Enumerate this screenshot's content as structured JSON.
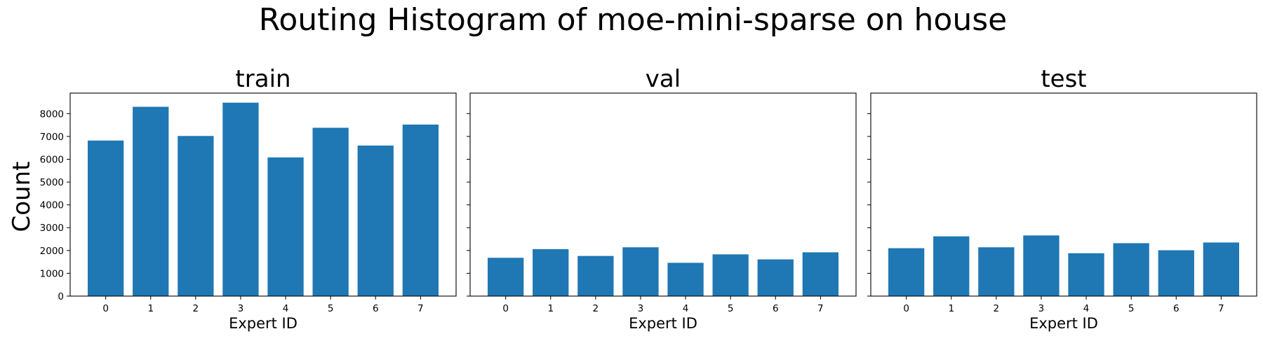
{
  "chart_data": {
    "title": "Routing Histogram of moe-mini-sparse on house",
    "ylabel": "Count",
    "type": "bar",
    "color": "#1f77b4",
    "sharey": true,
    "ylim": [
      0,
      8900
    ],
    "yticks": [
      0,
      1000,
      2000,
      3000,
      4000,
      5000,
      6000,
      7000,
      8000
    ],
    "categories": [
      "0",
      "1",
      "2",
      "3",
      "4",
      "5",
      "6",
      "7"
    ],
    "panels": [
      {
        "title": "train",
        "xlabel": "Expert ID",
        "values": [
          6820,
          8300,
          7020,
          8480,
          6080,
          7380,
          6600,
          7520
        ]
      },
      {
        "title": "val",
        "xlabel": "Expert ID",
        "values": [
          1680,
          2060,
          1760,
          2140,
          1460,
          1830,
          1610,
          1920
        ]
      },
      {
        "title": "test",
        "xlabel": "Expert ID",
        "values": [
          2100,
          2620,
          2140,
          2660,
          1880,
          2320,
          2010,
          2350
        ]
      }
    ]
  }
}
